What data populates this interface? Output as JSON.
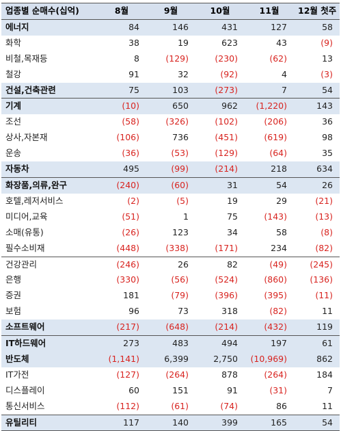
{
  "table": {
    "headers": [
      "업종별 순매수(십억)",
      "8월",
      "9월",
      "10월",
      "11월",
      "12월 첫주"
    ],
    "rows": [
      {
        "name": "에너지",
        "sector": true,
        "values": [
          "84",
          "146",
          "431",
          "127",
          "58"
        ]
      },
      {
        "name": "화학",
        "sector": false,
        "values": [
          "38",
          "19",
          "623",
          "43",
          "(9)"
        ]
      },
      {
        "name": "비철,목재등",
        "sector": false,
        "values": [
          "8",
          "(129)",
          "(230)",
          "(62)",
          "13"
        ]
      },
      {
        "name": "철강",
        "sector": false,
        "values": [
          "91",
          "32",
          "(92)",
          "4",
          "(3)"
        ]
      },
      {
        "name": "건설,건축관련",
        "sector": true,
        "values": [
          "75",
          "103",
          "(273)",
          "7",
          "54"
        ]
      },
      {
        "name": "기계",
        "sector": true,
        "divider": true,
        "values": [
          "(10)",
          "650",
          "962",
          "(1,220)",
          "143"
        ]
      },
      {
        "name": "조선",
        "sector": false,
        "values": [
          "(58)",
          "(326)",
          "(102)",
          "(206)",
          "36"
        ]
      },
      {
        "name": "상사,자본재",
        "sector": false,
        "values": [
          "(106)",
          "736",
          "(451)",
          "(619)",
          "98"
        ]
      },
      {
        "name": "운송",
        "sector": false,
        "values": [
          "(36)",
          "(53)",
          "(129)",
          "(64)",
          "35"
        ]
      },
      {
        "name": "자동차",
        "sector": true,
        "values": [
          "495",
          "(99)",
          "(214)",
          "218",
          "634"
        ]
      },
      {
        "name": "화장품,의류,완구",
        "sector": true,
        "divider": true,
        "values": [
          "(240)",
          "(60)",
          "31",
          "54",
          "26"
        ]
      },
      {
        "name": "호텔,레저서비스",
        "sector": false,
        "values": [
          "(2)",
          "(5)",
          "19",
          "29",
          "(21)"
        ]
      },
      {
        "name": "미디어,교육",
        "sector": false,
        "values": [
          "(51)",
          "1",
          "75",
          "(143)",
          "(13)"
        ]
      },
      {
        "name": "소매(유통)",
        "sector": false,
        "values": [
          "(26)",
          "123",
          "34",
          "58",
          "(8)"
        ]
      },
      {
        "name": "필수소비재",
        "sector": false,
        "values": [
          "(448)",
          "(338)",
          "(171)",
          "234",
          "(82)"
        ]
      },
      {
        "name": "건강관리",
        "sector": false,
        "divider": true,
        "values": [
          "(246)",
          "26",
          "82",
          "(49)",
          "(245)"
        ]
      },
      {
        "name": "은행",
        "sector": false,
        "values": [
          "(330)",
          "(56)",
          "(524)",
          "(860)",
          "(136)"
        ]
      },
      {
        "name": "증권",
        "sector": false,
        "values": [
          "181",
          "(79)",
          "(396)",
          "(395)",
          "(11)"
        ]
      },
      {
        "name": "보험",
        "sector": false,
        "values": [
          "96",
          "73",
          "318",
          "(82)",
          "11"
        ]
      },
      {
        "name": "소프트웨어",
        "sector": true,
        "values": [
          "(217)",
          "(648)",
          "(214)",
          "(432)",
          "119"
        ]
      },
      {
        "name": "IT하드웨어",
        "sector": true,
        "divider": true,
        "values": [
          "273",
          "483",
          "494",
          "197",
          "61"
        ]
      },
      {
        "name": "반도체",
        "sector": true,
        "values": [
          "(1,141)",
          "6,399",
          "2,750",
          "(10,969)",
          "862"
        ]
      },
      {
        "name": "IT가전",
        "sector": false,
        "values": [
          "(127)",
          "(264)",
          "878",
          "(264)",
          "184"
        ]
      },
      {
        "name": "디스플레이",
        "sector": false,
        "values": [
          "60",
          "151",
          "91",
          "(31)",
          "7"
        ]
      },
      {
        "name": "통신서비스",
        "sector": false,
        "values": [
          "(112)",
          "(61)",
          "(74)",
          "86",
          "11"
        ]
      },
      {
        "name": "유틸리티",
        "sector": true,
        "divider": true,
        "last": true,
        "values": [
          "117",
          "140",
          "399",
          "165",
          "54"
        ]
      }
    ]
  },
  "colors": {
    "negative": "#d8231f",
    "positive": "#222222",
    "header_bg": "#d6e0ee",
    "sector_bg": "#dce6f2"
  }
}
